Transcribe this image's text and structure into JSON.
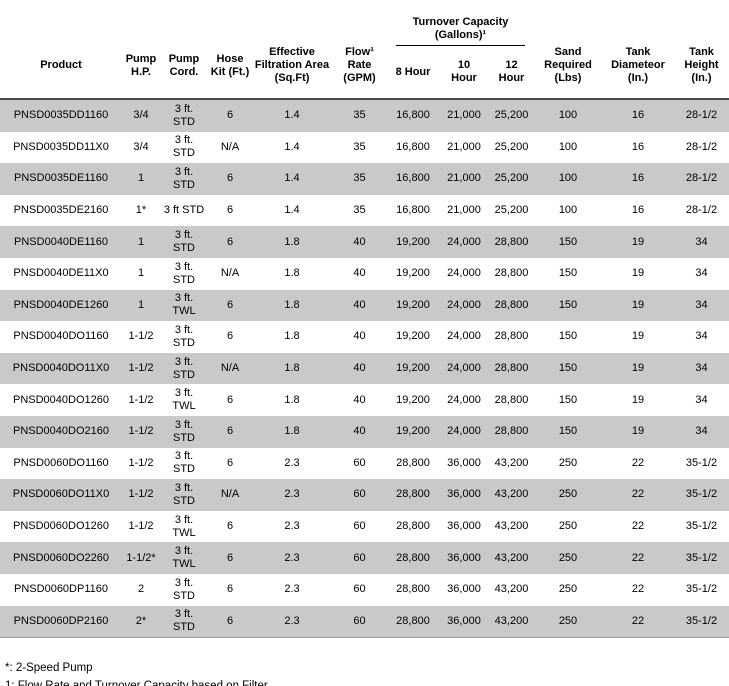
{
  "colors": {
    "row_alt": "#c9c9c9",
    "row_base": "#ffffff",
    "text": "#000000",
    "header_border": "#4a4a4a",
    "group_underline": "#000000"
  },
  "table": {
    "headers": {
      "product": "Product",
      "pump_hp": "Pump\nH.P.",
      "pump_cord": "Pump\nCord.",
      "hose_kit": "Hose\nKit (Ft.)",
      "filtration_area": "Effective\nFiltration Area\n(Sq.Ft)",
      "flow_rate": "Flow¹\nRate\n(GPM)",
      "turnover_group": "Turnover Capacity\n(Gallons)¹",
      "turnover_8hr": "8 Hour",
      "turnover_10hr": "10\nHour",
      "turnover_12hr": "12\nHour",
      "sand_required": "Sand\nRequired\n(Lbs)",
      "tank_diameter": "Tank\nDiameteor\n(In.)",
      "tank_height": "Tank\nHeight\n(In.)"
    },
    "column_keys": [
      "product",
      "pump_hp",
      "pump_cord",
      "hose_kit",
      "filtration_area",
      "flow_rate",
      "turnover_8hr",
      "turnover_10hr",
      "turnover_12hr",
      "sand_required",
      "tank_diameter",
      "tank_height"
    ],
    "rows": [
      {
        "product": "PNSD0035DD1160",
        "pump_hp": "3/4",
        "pump_cord": "3 ft.\nSTD",
        "hose_kit": "6",
        "filtration_area": "1.4",
        "flow_rate": "35",
        "turnover_8hr": "16,800",
        "turnover_10hr": "21,000",
        "turnover_12hr": "25,200",
        "sand_required": "100",
        "tank_diameter": "16",
        "tank_height": "28-1/2"
      },
      {
        "product": "PNSD0035DD11X0",
        "pump_hp": "3/4",
        "pump_cord": "3 ft.\nSTD",
        "hose_kit": "N/A",
        "filtration_area": "1.4",
        "flow_rate": "35",
        "turnover_8hr": "16,800",
        "turnover_10hr": "21,000",
        "turnover_12hr": "25,200",
        "sand_required": "100",
        "tank_diameter": "16",
        "tank_height": "28-1/2"
      },
      {
        "product": "PNSD0035DE1160",
        "pump_hp": "1",
        "pump_cord": "3 ft.\nSTD",
        "hose_kit": "6",
        "filtration_area": "1.4",
        "flow_rate": "35",
        "turnover_8hr": "16,800",
        "turnover_10hr": "21,000",
        "turnover_12hr": "25,200",
        "sand_required": "100",
        "tank_diameter": "16",
        "tank_height": "28-1/2"
      },
      {
        "product": "PNSD0035DE2160",
        "pump_hp": "1*",
        "pump_cord": "3 ft STD",
        "hose_kit": "6",
        "filtration_area": "1.4",
        "flow_rate": "35",
        "turnover_8hr": "16,800",
        "turnover_10hr": "21,000",
        "turnover_12hr": "25,200",
        "sand_required": "100",
        "tank_diameter": "16",
        "tank_height": "28-1/2"
      },
      {
        "product": "PNSD0040DE1160",
        "pump_hp": "1",
        "pump_cord": "3 ft.\nSTD",
        "hose_kit": "6",
        "filtration_area": "1.8",
        "flow_rate": "40",
        "turnover_8hr": "19,200",
        "turnover_10hr": "24,000",
        "turnover_12hr": "28,800",
        "sand_required": "150",
        "tank_diameter": "19",
        "tank_height": "34"
      },
      {
        "product": "PNSD0040DE11X0",
        "pump_hp": "1",
        "pump_cord": "3 ft.\nSTD",
        "hose_kit": "N/A",
        "filtration_area": "1.8",
        "flow_rate": "40",
        "turnover_8hr": "19,200",
        "turnover_10hr": "24,000",
        "turnover_12hr": "28,800",
        "sand_required": "150",
        "tank_diameter": "19",
        "tank_height": "34"
      },
      {
        "product": "PNSD0040DE1260",
        "pump_hp": "1",
        "pump_cord": "3 ft.\nTWL",
        "hose_kit": "6",
        "filtration_area": "1.8",
        "flow_rate": "40",
        "turnover_8hr": "19,200",
        "turnover_10hr": "24,000",
        "turnover_12hr": "28,800",
        "sand_required": "150",
        "tank_diameter": "19",
        "tank_height": "34"
      },
      {
        "product": "PNSD0040DO1160",
        "pump_hp": "1-1/2",
        "pump_cord": "3 ft.\nSTD",
        "hose_kit": "6",
        "filtration_area": "1.8",
        "flow_rate": "40",
        "turnover_8hr": "19,200",
        "turnover_10hr": "24,000",
        "turnover_12hr": "28,800",
        "sand_required": "150",
        "tank_diameter": "19",
        "tank_height": "34"
      },
      {
        "product": "PNSD0040DO11X0",
        "pump_hp": "1-1/2",
        "pump_cord": "3 ft.\nSTD",
        "hose_kit": "N/A",
        "filtration_area": "1.8",
        "flow_rate": "40",
        "turnover_8hr": "19,200",
        "turnover_10hr": "24,000",
        "turnover_12hr": "28,800",
        "sand_required": "150",
        "tank_diameter": "19",
        "tank_height": "34"
      },
      {
        "product": "PNSD0040DO1260",
        "pump_hp": "1-1/2",
        "pump_cord": "3 ft.\nTWL",
        "hose_kit": "6",
        "filtration_area": "1.8",
        "flow_rate": "40",
        "turnover_8hr": "19,200",
        "turnover_10hr": "24,000",
        "turnover_12hr": "28,800",
        "sand_required": "150",
        "tank_diameter": "19",
        "tank_height": "34"
      },
      {
        "product": "PNSD0040DO2160",
        "pump_hp": "1-1/2",
        "pump_cord": "3 ft.\nSTD",
        "hose_kit": "6",
        "filtration_area": "1.8",
        "flow_rate": "40",
        "turnover_8hr": "19,200",
        "turnover_10hr": "24,000",
        "turnover_12hr": "28,800",
        "sand_required": "150",
        "tank_diameter": "19",
        "tank_height": "34"
      },
      {
        "product": "PNSD0060DO1160",
        "pump_hp": "1-1/2",
        "pump_cord": "3 ft.\nSTD",
        "hose_kit": "6",
        "filtration_area": "2.3",
        "flow_rate": "60",
        "turnover_8hr": "28,800",
        "turnover_10hr": "36,000",
        "turnover_12hr": "43,200",
        "sand_required": "250",
        "tank_diameter": "22",
        "tank_height": "35-1/2"
      },
      {
        "product": "PNSD0060DO11X0",
        "pump_hp": "1-1/2",
        "pump_cord": "3 ft.\nSTD",
        "hose_kit": "N/A",
        "filtration_area": "2.3",
        "flow_rate": "60",
        "turnover_8hr": "28,800",
        "turnover_10hr": "36,000",
        "turnover_12hr": "43,200",
        "sand_required": "250",
        "tank_diameter": "22",
        "tank_height": "35-1/2"
      },
      {
        "product": "PNSD0060DO1260",
        "pump_hp": "1-1/2",
        "pump_cord": "3 ft.\nTWL",
        "hose_kit": "6",
        "filtration_area": "2.3",
        "flow_rate": "60",
        "turnover_8hr": "28,800",
        "turnover_10hr": "36,000",
        "turnover_12hr": "43,200",
        "sand_required": "250",
        "tank_diameter": "22",
        "tank_height": "35-1/2"
      },
      {
        "product": "PNSD0060DO2260",
        "pump_hp": "1-1/2*",
        "pump_cord": "3 ft.\nTWL",
        "hose_kit": "6",
        "filtration_area": "2.3",
        "flow_rate": "60",
        "turnover_8hr": "28,800",
        "turnover_10hr": "36,000",
        "turnover_12hr": "43,200",
        "sand_required": "250",
        "tank_diameter": "22",
        "tank_height": "35-1/2"
      },
      {
        "product": "PNSD0060DP1160",
        "pump_hp": "2",
        "pump_cord": "3 ft.\nSTD",
        "hose_kit": "6",
        "filtration_area": "2.3",
        "flow_rate": "60",
        "turnover_8hr": "28,800",
        "turnover_10hr": "36,000",
        "turnover_12hr": "43,200",
        "sand_required": "250",
        "tank_diameter": "22",
        "tank_height": "35-1/2"
      },
      {
        "product": "PNSD0060DP2160",
        "pump_hp": "2*",
        "pump_cord": "3 ft.\nSTD",
        "hose_kit": "6",
        "filtration_area": "2.3",
        "flow_rate": "60",
        "turnover_8hr": "28,800",
        "turnover_10hr": "36,000",
        "turnover_12hr": "43,200",
        "sand_required": "250",
        "tank_diameter": "22",
        "tank_height": "35-1/2"
      }
    ]
  },
  "footnotes": [
    "*: 2-Speed Pump",
    "1: Flow Rate and Turnover Capacity based on Filter."
  ]
}
